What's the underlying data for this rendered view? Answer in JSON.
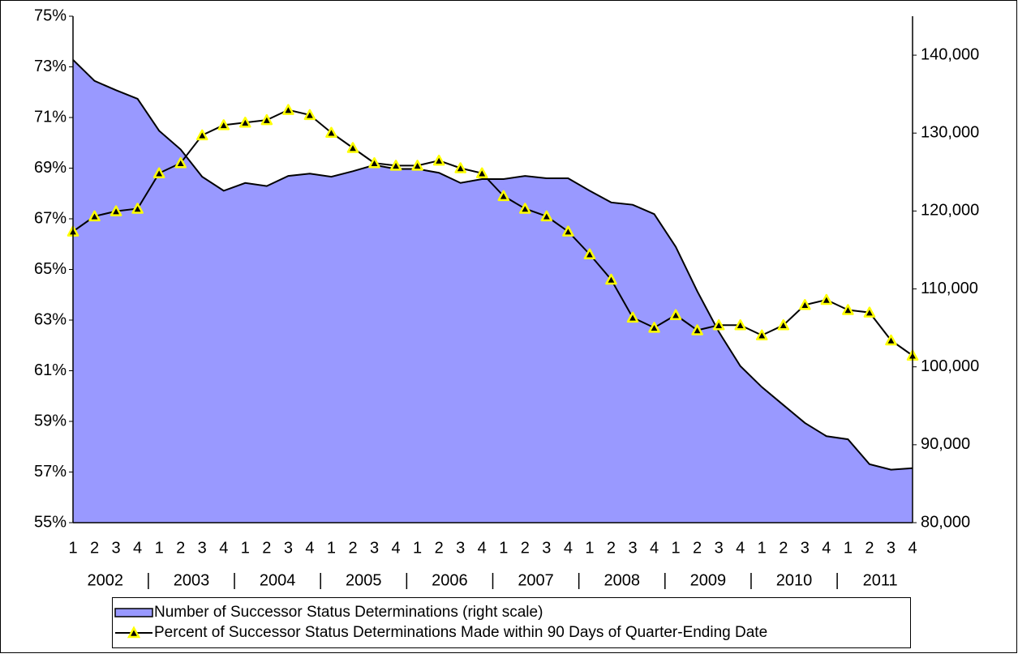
{
  "chart_data": {
    "type": "line",
    "categories": [
      "1",
      "2",
      "3",
      "4",
      "1",
      "2",
      "3",
      "4",
      "1",
      "2",
      "3",
      "4",
      "1",
      "2",
      "3",
      "4",
      "1",
      "2",
      "3",
      "4",
      "1",
      "2",
      "3",
      "4",
      "1",
      "2",
      "3",
      "4",
      "1",
      "2",
      "3",
      "4",
      "1",
      "2",
      "3",
      "4",
      "1",
      "2",
      "3",
      "4"
    ],
    "years": [
      "2002",
      "2003",
      "2004",
      "2005",
      "2006",
      "2007",
      "2008",
      "2009",
      "2010",
      "2011"
    ],
    "series": [
      {
        "name": "Number of Successor Status Determinations (right scale)",
        "style": "area",
        "color": "#9999ff",
        "axis": "y2",
        "values": [
          139400,
          136700,
          135500,
          134400,
          130300,
          127900,
          124400,
          122600,
          123600,
          123200,
          124500,
          124800,
          124400,
          125100,
          125900,
          125400,
          125400,
          124900,
          123600,
          124100,
          124100,
          124500,
          124200,
          124200,
          122600,
          121100,
          120800,
          119600,
          115400,
          109700,
          104500,
          100100,
          97400,
          95100,
          92800,
          91100,
          90700,
          87500,
          86800,
          87000
        ]
      },
      {
        "name": "Percent of Successor Status Determinations Made within 90 Days of Quarter-Ending Date",
        "style": "line",
        "color": "#000000",
        "marker_color": "#ffff00",
        "values": [
          66.5,
          67.1,
          67.3,
          67.4,
          68.8,
          69.2,
          70.3,
          70.7,
          70.8,
          70.9,
          71.3,
          71.1,
          70.4,
          69.8,
          69.2,
          69.1,
          69.1,
          69.3,
          69.0,
          68.8,
          67.9,
          67.4,
          67.1,
          66.5,
          65.6,
          64.6,
          63.1,
          62.7,
          63.2,
          62.6,
          62.8,
          62.8,
          62.4,
          62.8,
          63.6,
          63.8,
          63.4,
          63.3,
          62.2,
          61.6
        ]
      }
    ],
    "ylim": [
      55,
      75
    ],
    "yticks": [
      {
        "value": 55,
        "label": "55%"
      },
      {
        "value": 57,
        "label": "57%"
      },
      {
        "value": 59,
        "label": "59%"
      },
      {
        "value": 61,
        "label": "61%"
      },
      {
        "value": 63,
        "label": "63%"
      },
      {
        "value": 65,
        "label": "65%"
      },
      {
        "value": 67,
        "label": "67%"
      },
      {
        "value": 69,
        "label": "69%"
      },
      {
        "value": 71,
        "label": "71%"
      },
      {
        "value": 73,
        "label": "73%"
      },
      {
        "value": 75,
        "label": "75%"
      }
    ],
    "y2lim": [
      80000,
      145000
    ],
    "y2ticks": [
      {
        "value": 80000,
        "label": "80,000"
      },
      {
        "value": 90000,
        "label": "90,000"
      },
      {
        "value": 100000,
        "label": "100,000"
      },
      {
        "value": 110000,
        "label": "110,000"
      },
      {
        "value": 120000,
        "label": "120,000"
      },
      {
        "value": 130000,
        "label": "130,000"
      },
      {
        "value": 140000,
        "label": "140,000"
      }
    ],
    "grid": false
  }
}
